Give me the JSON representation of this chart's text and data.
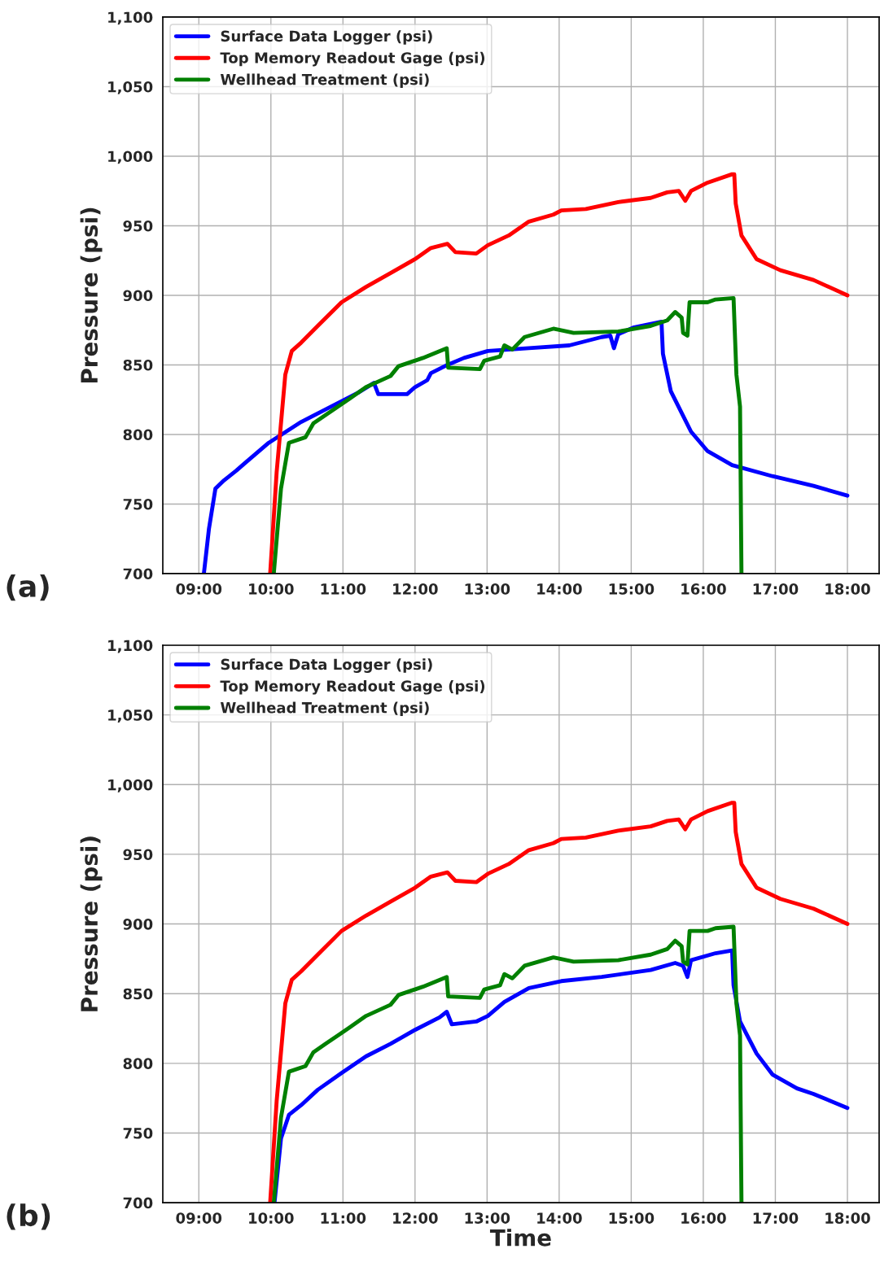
{
  "chart_data": [
    {
      "type": "line",
      "annotations": [
        "(a)"
      ],
      "ylabel": "Pressure (psi)",
      "xlim": [
        8.5,
        18.44
      ],
      "ylim": [
        700,
        1100
      ],
      "xticks": [
        {
          "value": 9,
          "label": "09:00"
        },
        {
          "value": 10,
          "label": "10:00"
        },
        {
          "value": 11,
          "label": "11:00"
        },
        {
          "value": 12,
          "label": "12:00"
        },
        {
          "value": 13,
          "label": "13:00"
        },
        {
          "value": 14,
          "label": "14:00"
        },
        {
          "value": 15,
          "label": "15:00"
        },
        {
          "value": 16,
          "label": "16:00"
        },
        {
          "value": 17,
          "label": "17:00"
        },
        {
          "value": 18,
          "label": "18:00"
        }
      ],
      "yticks": [
        700,
        750,
        800,
        850,
        900,
        950,
        {
          "value": 1000,
          "label": "1,000"
        },
        {
          "value": 1050,
          "label": "1,050"
        },
        {
          "value": 1100,
          "label": "1,100"
        }
      ],
      "grid": true,
      "legend": "top left",
      "line_style": "solid",
      "series": [
        {
          "name": "Surface Data Logger (psi)",
          "color": "#0000ff",
          "x": [
            9.07,
            9.14,
            9.23,
            9.35,
            9.52,
            9.63,
            9.97,
            10.42,
            10.76,
            11.21,
            11.43,
            11.49,
            11.89,
            12.0,
            12.17,
            12.22,
            12.45,
            12.68,
            13.01,
            13.58,
            14.14,
            14.59,
            14.71,
            14.76,
            14.82,
            15.04,
            15.42,
            15.44,
            15.55,
            15.83,
            16.06,
            16.4,
            16.96,
            17.53,
            18.0
          ],
          "values": [
            700,
            732,
            761,
            767,
            774,
            779,
            794,
            809,
            818,
            830,
            837,
            829,
            829,
            834,
            839,
            844,
            850,
            855,
            860,
            862,
            864,
            870,
            871,
            862,
            872,
            877,
            881,
            858,
            831,
            802,
            788,
            778,
            770,
            763,
            756
          ]
        },
        {
          "name": "Top Memory Readout Gage (psi)",
          "color": "#ff0000",
          "x": [
            9.99,
            10.08,
            10.2,
            10.29,
            10.42,
            10.65,
            10.98,
            11.32,
            11.66,
            12.0,
            12.22,
            12.45,
            12.56,
            12.85,
            13.01,
            13.3,
            13.58,
            13.92,
            14.03,
            14.37,
            14.82,
            15.27,
            15.5,
            15.66,
            15.75,
            15.83,
            16.06,
            16.4,
            16.43,
            16.45,
            16.53,
            16.74,
            17.07,
            17.53,
            18.0
          ],
          "values": [
            700,
            773,
            843,
            860,
            866,
            878,
            895,
            906,
            916,
            926,
            934,
            937,
            931,
            930,
            936,
            943,
            953,
            958,
            961,
            962,
            967,
            970,
            974,
            975,
            968,
            975,
            981,
            987,
            987,
            966,
            943,
            926,
            918,
            911,
            900
          ]
        },
        {
          "name": "Wellhead Treatment (psi)",
          "color": "#008000",
          "x": [
            10.04,
            10.14,
            10.25,
            10.48,
            10.59,
            10.76,
            11.1,
            11.32,
            11.66,
            11.77,
            12.11,
            12.44,
            12.46,
            12.9,
            12.96,
            13.18,
            13.24,
            13.35,
            13.52,
            13.92,
            14.2,
            14.82,
            15.27,
            15.5,
            15.61,
            15.7,
            15.72,
            15.78,
            15.81,
            16.06,
            16.17,
            16.42,
            16.46,
            16.51,
            16.53
          ],
          "values": [
            700,
            761,
            794,
            798,
            808,
            814,
            826,
            834,
            842,
            849,
            855,
            862,
            848,
            847,
            853,
            856,
            864,
            861,
            870,
            876,
            873,
            874,
            878,
            882,
            888,
            884,
            873,
            871,
            895,
            895,
            897,
            898,
            843,
            820,
            700
          ]
        }
      ]
    },
    {
      "type": "line",
      "annotations": [
        "(b)"
      ],
      "xlabel": "Time",
      "ylabel": "Pressure (psi)",
      "xlim": [
        8.5,
        18.44
      ],
      "ylim": [
        700,
        1100
      ],
      "xticks": [
        {
          "value": 9,
          "label": "09:00"
        },
        {
          "value": 10,
          "label": "10:00"
        },
        {
          "value": 11,
          "label": "11:00"
        },
        {
          "value": 12,
          "label": "12:00"
        },
        {
          "value": 13,
          "label": "13:00"
        },
        {
          "value": 14,
          "label": "14:00"
        },
        {
          "value": 15,
          "label": "15:00"
        },
        {
          "value": 16,
          "label": "16:00"
        },
        {
          "value": 17,
          "label": "17:00"
        },
        {
          "value": 18,
          "label": "18:00"
        }
      ],
      "yticks": [
        700,
        750,
        800,
        850,
        900,
        950,
        {
          "value": 1000,
          "label": "1,000"
        },
        {
          "value": 1050,
          "label": "1,050"
        },
        {
          "value": 1100,
          "label": "1,100"
        }
      ],
      "grid": true,
      "legend": "top left",
      "line_style": "solid",
      "series": [
        {
          "name": "Surface Data Logger (psi)",
          "color": "#0000ff",
          "x": [
            10.05,
            10.14,
            10.25,
            10.42,
            10.65,
            10.98,
            11.32,
            11.66,
            12.0,
            12.34,
            12.44,
            12.51,
            12.85,
            13.01,
            13.24,
            13.58,
            14.03,
            14.59,
            15.27,
            15.61,
            15.72,
            15.78,
            15.83,
            16.17,
            16.4,
            16.42,
            16.51,
            16.74,
            16.96,
            17.3,
            17.53,
            18.0
          ],
          "values": [
            700,
            746,
            763,
            770,
            781,
            793,
            805,
            814,
            824,
            833,
            837,
            828,
            830,
            834,
            844,
            854,
            859,
            862,
            867,
            872,
            870,
            862,
            874,
            879,
            881,
            856,
            830,
            807,
            792,
            782,
            778,
            768
          ]
        },
        {
          "name": "Top Memory Readout Gage (psi)",
          "color": "#ff0000",
          "x": [
            9.99,
            10.08,
            10.2,
            10.29,
            10.42,
            10.65,
            10.98,
            11.32,
            11.66,
            12.0,
            12.22,
            12.45,
            12.56,
            12.85,
            13.01,
            13.3,
            13.58,
            13.92,
            14.03,
            14.37,
            14.82,
            15.27,
            15.5,
            15.66,
            15.75,
            15.83,
            16.06,
            16.4,
            16.43,
            16.45,
            16.53,
            16.74,
            17.07,
            17.53,
            18.0
          ],
          "values": [
            700,
            773,
            843,
            860,
            866,
            878,
            895,
            906,
            916,
            926,
            934,
            937,
            931,
            930,
            936,
            943,
            953,
            958,
            961,
            962,
            967,
            970,
            974,
            975,
            968,
            975,
            981,
            987,
            987,
            966,
            943,
            926,
            918,
            911,
            900
          ]
        },
        {
          "name": "Wellhead Treatment (psi)",
          "color": "#008000",
          "x": [
            10.04,
            10.14,
            10.25,
            10.48,
            10.59,
            10.76,
            11.1,
            11.32,
            11.66,
            11.77,
            12.11,
            12.44,
            12.46,
            12.9,
            12.96,
            13.18,
            13.24,
            13.35,
            13.52,
            13.92,
            14.2,
            14.82,
            15.27,
            15.5,
            15.61,
            15.7,
            15.72,
            15.78,
            15.81,
            16.06,
            16.17,
            16.42,
            16.46,
            16.51,
            16.53
          ],
          "values": [
            700,
            761,
            794,
            798,
            808,
            814,
            826,
            834,
            842,
            849,
            855,
            862,
            848,
            847,
            853,
            856,
            864,
            861,
            870,
            876,
            873,
            874,
            878,
            882,
            888,
            884,
            873,
            871,
            895,
            895,
            897,
            898,
            843,
            820,
            700
          ]
        }
      ]
    }
  ]
}
